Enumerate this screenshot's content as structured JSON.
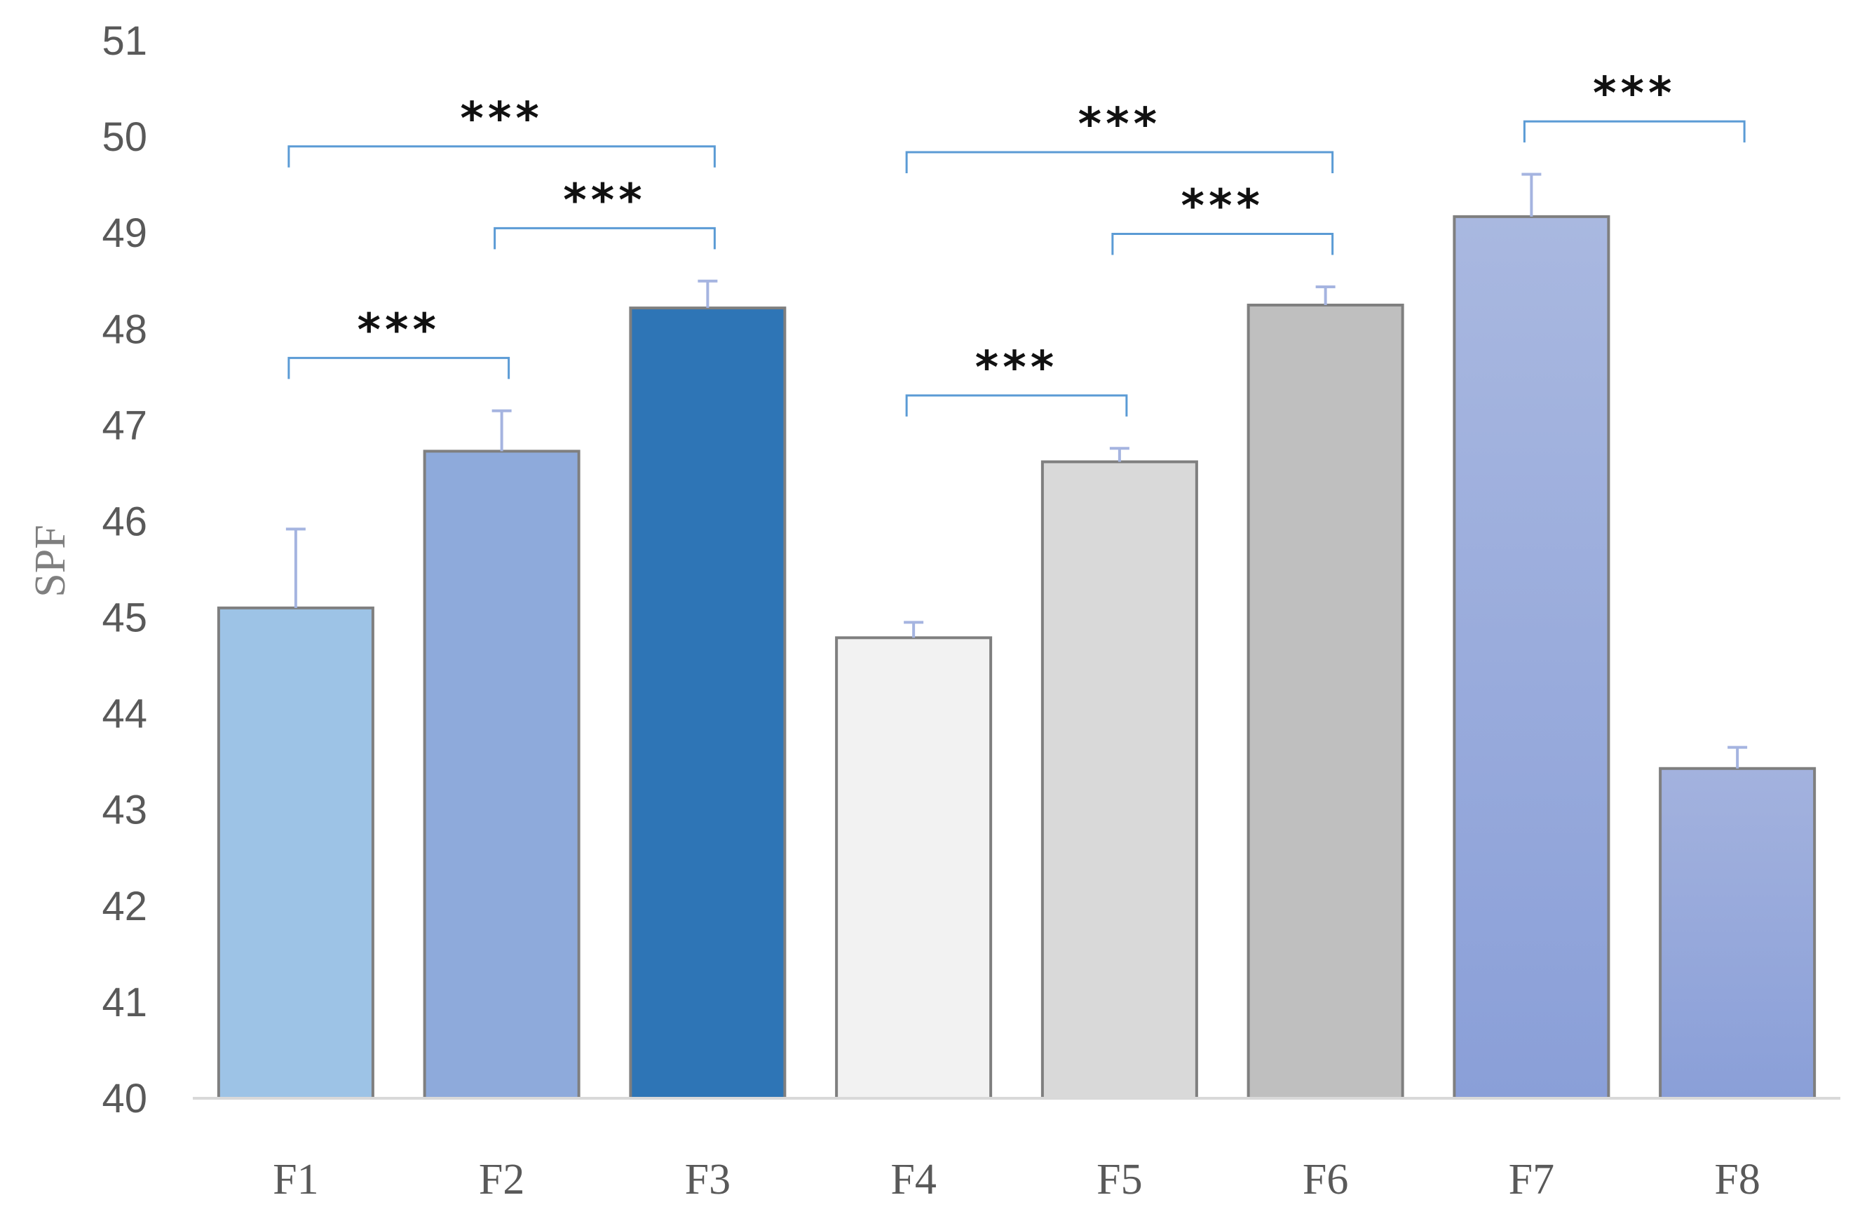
{
  "chart_data": {
    "type": "bar",
    "title": "",
    "xlabel": "",
    "ylabel": "SPF",
    "ylim": [
      40,
      51
    ],
    "yticks": [
      40,
      41,
      42,
      43,
      44,
      45,
      46,
      47,
      48,
      49,
      50,
      51
    ],
    "grid": false,
    "legend": "none",
    "categories": [
      "F1",
      "F2",
      "F3",
      "F4",
      "F5",
      "F6",
      "F7",
      "F8"
    ],
    "values": [
      45.1,
      46.73,
      48.22,
      44.79,
      46.62,
      48.25,
      49.17,
      43.43
    ],
    "errors": [
      0.82,
      0.42,
      0.28,
      0.16,
      0.14,
      0.19,
      0.44,
      0.22
    ],
    "colors": [
      "#9dc3e6",
      "#8eaadb",
      "#2e75b6",
      "#f2f2f2",
      "#d9d9d9",
      "#bfbfbf",
      "#8faadc",
      "#8faadc"
    ],
    "significance": [
      {
        "from": "F1",
        "to": "F2",
        "label": "***"
      },
      {
        "from": "F2",
        "to": "F3",
        "label": "***"
      },
      {
        "from": "F1",
        "to": "F3",
        "label": "***"
      },
      {
        "from": "F4",
        "to": "F5",
        "label": "***"
      },
      {
        "from": "F5",
        "to": "F6",
        "label": "***"
      },
      {
        "from": "F4",
        "to": "F6",
        "label": "***"
      },
      {
        "from": "F7",
        "to": "F8",
        "label": "***"
      }
    ]
  }
}
